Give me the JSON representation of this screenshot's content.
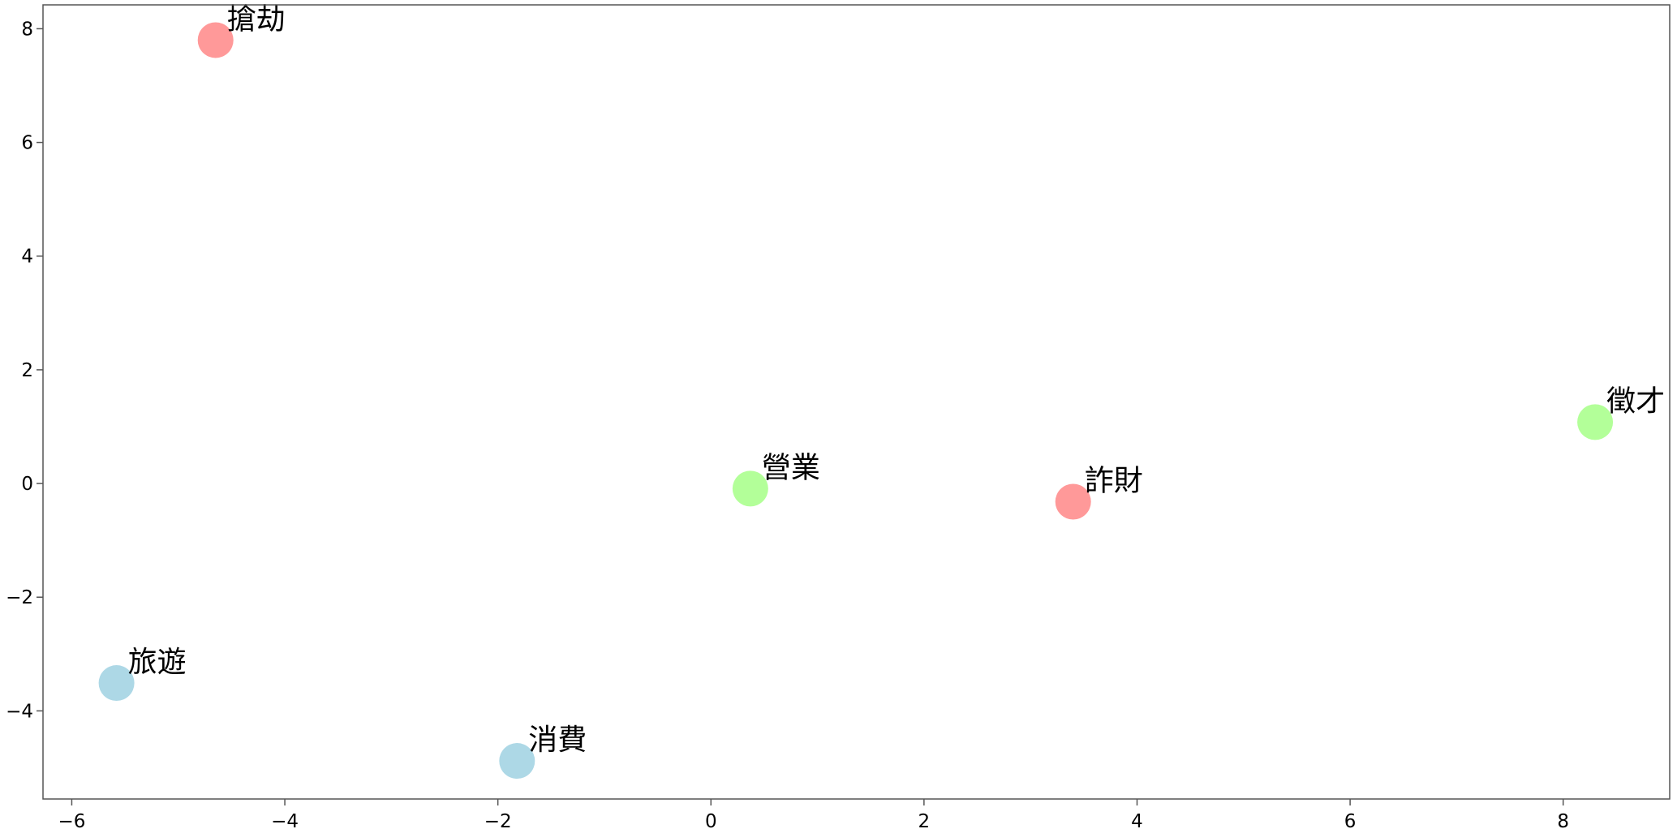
{
  "chart_data": {
    "type": "scatter",
    "title": "",
    "xlabel": "",
    "ylabel": "",
    "xlim": [
      -6.27,
      9.0
    ],
    "ylim": [
      -5.55,
      8.42
    ],
    "xticks": [
      -6,
      -4,
      -2,
      0,
      2,
      4,
      6,
      8
    ],
    "yticks": [
      -4,
      -2,
      0,
      2,
      4,
      6,
      8
    ],
    "tick_labels_x": [
      "−6",
      "−4",
      "−2",
      "0",
      "2",
      "4",
      "6",
      "8"
    ],
    "tick_labels_y": [
      "−4",
      "−2",
      "0",
      "2",
      "4",
      "6",
      "8"
    ],
    "grid": false,
    "legend": null,
    "points": [
      {
        "label": "搶劫",
        "x": -4.65,
        "y": 7.8,
        "color": "#ff9999"
      },
      {
        "label": "詐財",
        "x": 3.4,
        "y": -0.32,
        "color": "#ff9999"
      },
      {
        "label": "營業",
        "x": 0.37,
        "y": -0.09,
        "color": "#b3ff99"
      },
      {
        "label": "徵才",
        "x": 8.3,
        "y": 1.08,
        "color": "#b3ff99"
      },
      {
        "label": "旅遊",
        "x": -5.58,
        "y": -3.51,
        "color": "#add8e6"
      },
      {
        "label": "消費",
        "x": -1.82,
        "y": -4.88,
        "color": "#add8e6"
      }
    ]
  }
}
